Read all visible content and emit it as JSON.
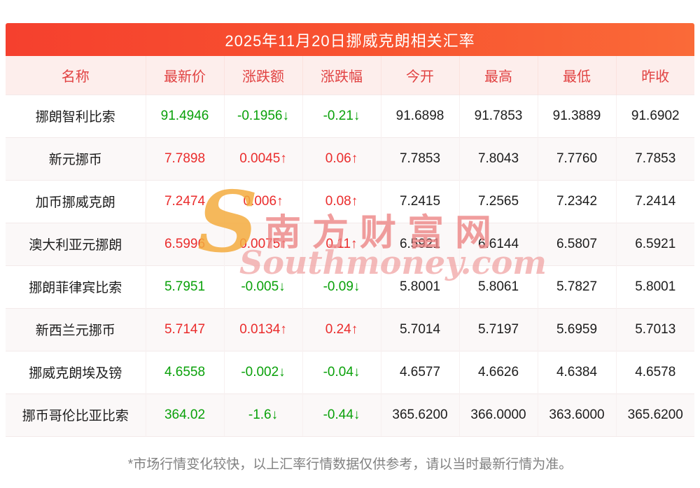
{
  "chart_data": {
    "type": "table",
    "title": "2025年11月20日挪威克朗相关汇率",
    "columns": [
      "名称",
      "最新价",
      "涨跌额",
      "涨跌幅",
      "今开",
      "最高",
      "最低",
      "昨收"
    ],
    "rows": [
      {
        "cells": [
          "挪朗智利比索",
          "91.4946",
          "-0.1956↓",
          "-0.21↓",
          "91.6898",
          "91.7853",
          "91.3889",
          "91.6902"
        ],
        "trend": "down"
      },
      {
        "cells": [
          "新元挪币",
          "7.7898",
          "0.0045↑",
          "0.06↑",
          "7.7853",
          "7.8043",
          "7.7760",
          "7.7853"
        ],
        "trend": "up"
      },
      {
        "cells": [
          "加币挪威克朗",
          "7.2474",
          "0.006↑",
          "0.08↑",
          "7.2415",
          "7.2565",
          "7.2342",
          "7.2414"
        ],
        "trend": "up"
      },
      {
        "cells": [
          "澳大利亚元挪朗",
          "6.5996",
          "0.0075↑",
          "0.11↑",
          "6.5921",
          "6.6144",
          "6.5807",
          "6.5921"
        ],
        "trend": "up"
      },
      {
        "cells": [
          "挪朗菲律宾比索",
          "5.7951",
          "-0.005↓",
          "-0.09↓",
          "5.8001",
          "5.8061",
          "5.7827",
          "5.8001"
        ],
        "trend": "down"
      },
      {
        "cells": [
          "新西兰元挪币",
          "5.7147",
          "0.0134↑",
          "0.24↑",
          "5.7014",
          "5.7197",
          "5.6959",
          "5.7013"
        ],
        "trend": "up"
      },
      {
        "cells": [
          "挪威克朗埃及镑",
          "4.6558",
          "-0.002↓",
          "-0.04↓",
          "4.6577",
          "4.6626",
          "4.6384",
          "4.6578"
        ],
        "trend": "down"
      },
      {
        "cells": [
          "挪币哥伦比亚比索",
          "364.02",
          "-1.6↓",
          "-0.44↓",
          "365.6200",
          "366.0000",
          "363.6000",
          "365.6200"
        ],
        "trend": "down"
      }
    ]
  },
  "watermark": {
    "logo": "S",
    "cn": "南方财富网",
    "en": "Southmoney.com"
  },
  "footer_note": "*市场行情变化较快，以上汇率行情数据仅供参考，请以当时最新行情为准。",
  "colors": {
    "up": "#ea2c2c",
    "down": "#0aa10a",
    "title_bar_from": "#f5402e",
    "title_bar_to": "#fa6a38",
    "table_header_bg": "#fdeeec",
    "table_header_text": "#e14242"
  }
}
